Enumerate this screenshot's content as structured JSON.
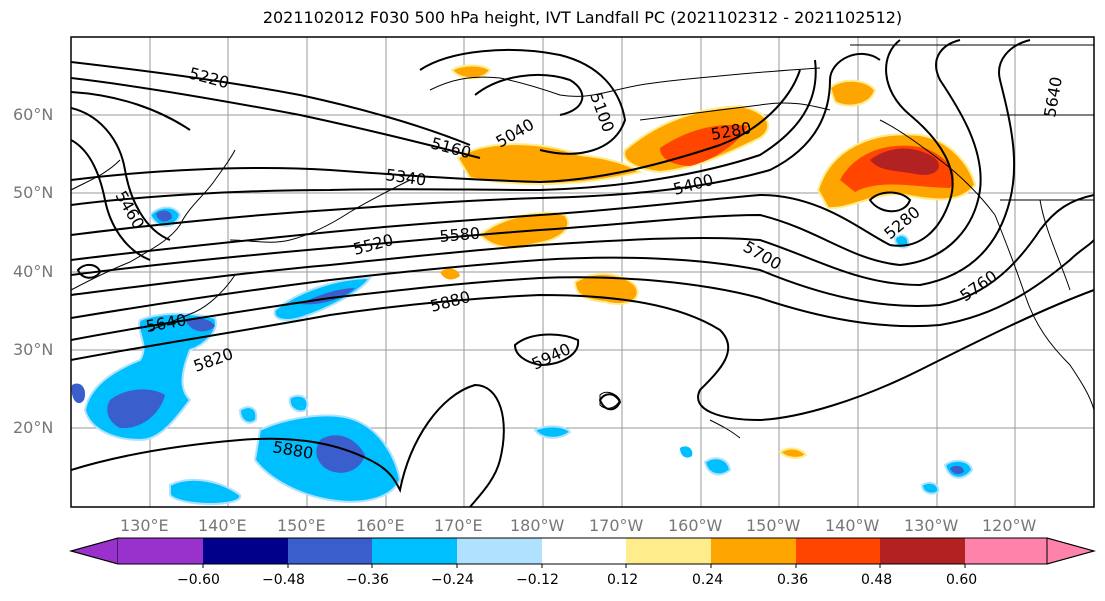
{
  "title": "2021102012 F030 500 hPa height, IVT Landfall PC (2021102312 - 2021102512)",
  "latitude_labels": [
    "60°N",
    "50°N",
    "40°N",
    "30°N",
    "20°N"
  ],
  "longitude_labels": [
    "130°E",
    "140°E",
    "150°E",
    "160°E",
    "170°E",
    "180°W",
    "170°W",
    "160°W",
    "150°W",
    "140°W",
    "130°W",
    "120°W"
  ],
  "contour_labels": [
    "5220",
    "5040",
    "5100",
    "5160",
    "5280",
    "5340",
    "5400",
    "5640",
    "5460",
    "5280",
    "5520",
    "5580",
    "5700",
    "5760",
    "5880",
    "5640",
    "5820",
    "5940",
    "5880"
  ],
  "colorbar": {
    "colors": [
      "#9932cc",
      "#00008b",
      "#3a5fcd",
      "#00bfff",
      "#b0e2ff",
      "#ffffff",
      "#ffec8b",
      "#ffa500",
      "#ff4500",
      "#b22222",
      "#ff82ab"
    ],
    "tick_labels": [
      "−0.60",
      "−0.48",
      "−0.36",
      "−0.24",
      "−0.12",
      "0.12",
      "0.24",
      "0.36",
      "0.48",
      "0.60"
    ]
  }
}
